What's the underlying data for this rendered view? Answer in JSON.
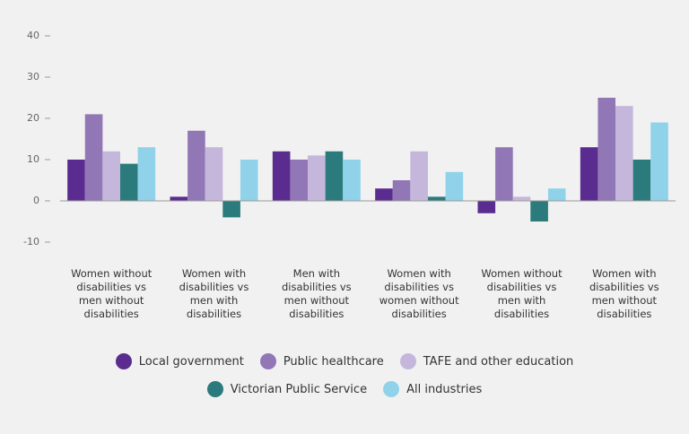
{
  "chart_data": {
    "type": "bar",
    "categories": [
      "Women without disabilities vs men without disabilities",
      "Women with disabilities vs men with disabilities",
      "Men with disabilities vs men without disabilities",
      "Women with disabilities vs women without disabilities",
      "Women without disabilities vs men with disabilities",
      "Women with disabilities vs men without disabilities"
    ],
    "series": [
      {
        "name": "Local government",
        "color": "#5b2c8f",
        "values": [
          10,
          1,
          12,
          3,
          -3,
          13
        ]
      },
      {
        "name": "Public healthcare",
        "color": "#9177b6",
        "values": [
          21,
          17,
          10,
          5,
          13,
          25
        ]
      },
      {
        "name": "TAFE and other education",
        "color": "#c5b7db",
        "values": [
          12,
          13,
          11,
          12,
          1,
          23
        ]
      },
      {
        "name": "Victorian Public Service",
        "color": "#2b7b7c",
        "values": [
          9,
          -4,
          12,
          1,
          -5,
          10
        ]
      },
      {
        "name": "All industries",
        "color": "#90d2e9",
        "values": [
          13,
          10,
          10,
          7,
          3,
          19
        ]
      }
    ],
    "ylim": [
      -10,
      40
    ],
    "yticks": [
      -10,
      0,
      10,
      20,
      30,
      40
    ],
    "grid": false
  }
}
